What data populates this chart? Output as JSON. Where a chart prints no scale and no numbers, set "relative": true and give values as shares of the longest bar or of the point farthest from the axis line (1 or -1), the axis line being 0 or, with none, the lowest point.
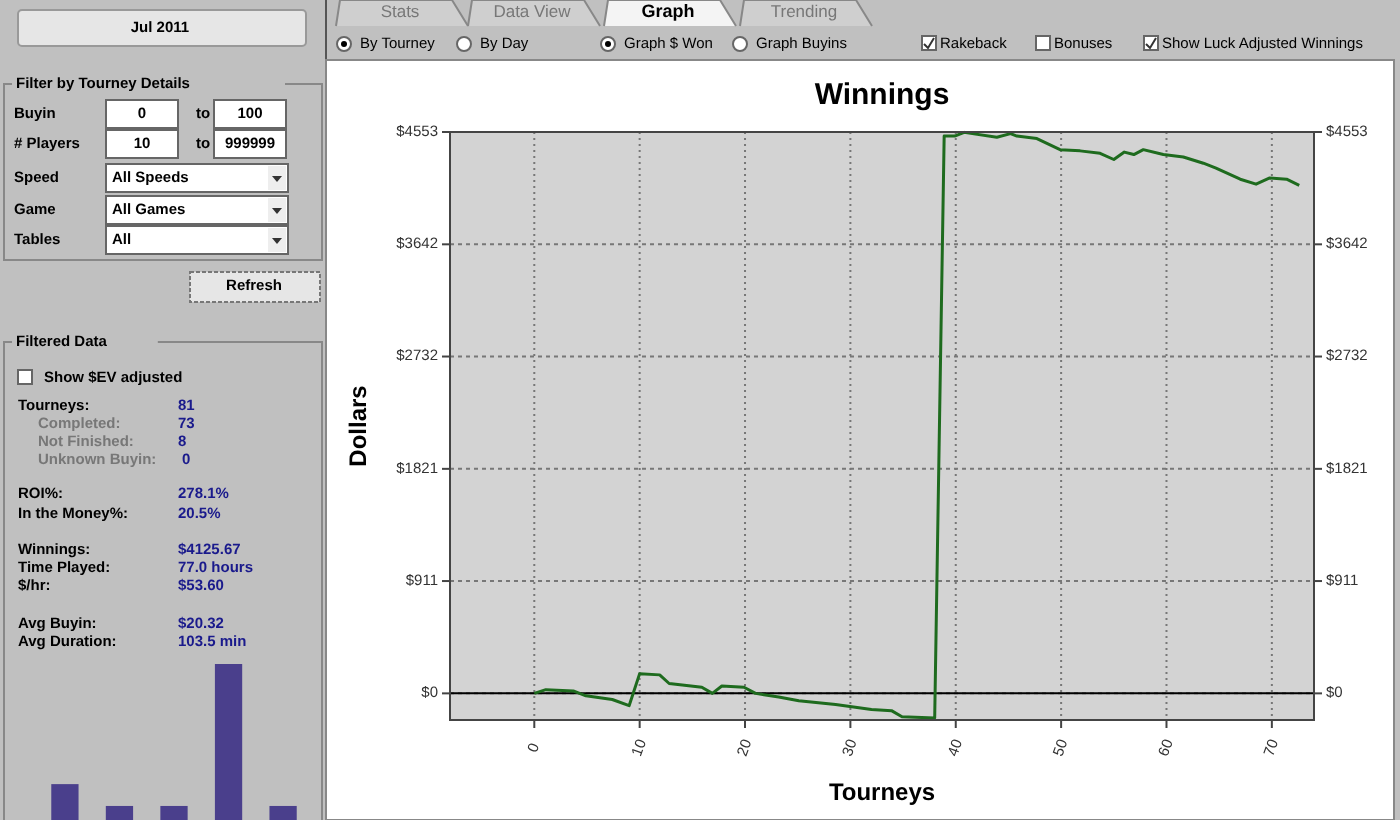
{
  "chart_data": [
    {
      "type": "other",
      "annotations": [
        "Jul 2011",
        "Filter by Tourney Details",
        "Buyin",
        "0",
        "to",
        "100",
        "# Players",
        "10",
        "to",
        "999999",
        "Speed",
        "All Speeds",
        "Game",
        "All Games",
        "Tables",
        "All",
        "Refresh",
        "Filtered Data",
        "Show $EV adjusted",
        "Tourneys:",
        "81",
        "Completed:",
        "73",
        "Not Finished:",
        "8",
        "Unknown Buyin:",
        "0",
        "ROI%:",
        "278.1%",
        "In the Money%:",
        "20.5%",
        "Winnings:",
        "$4125.67",
        "Time Played:",
        "77.0 hours",
        "$/hr:",
        "$53.60",
        "Avg Buyin:",
        "$20.32",
        "Avg Duration:",
        "103.5 min",
        "Stats",
        "Data View",
        "Graph",
        "Trending",
        "By Tourney",
        "By Day",
        "Graph $ Won",
        "Graph Buyins",
        "Rakeback",
        "Bonuses",
        "Show Luck Adjusted Winnings"
      ]
    },
    {
      "type": "line",
      "title": "Winnings",
      "xlabel": "Tourneys",
      "ylabel": "Dollars",
      "color": "#1e6b1e",
      "grid": true,
      "x": [
        0,
        1.1,
        3.7,
        4.9,
        7.4,
        9,
        10,
        11.9,
        12.8,
        15.9,
        16.9,
        17.8,
        19.9,
        21,
        23.2,
        25.1,
        28.6,
        32,
        33.9,
        34.9,
        38,
        38.9,
        39.9,
        40.8,
        43.9,
        45.2,
        45.8,
        47.7,
        49.9,
        51.8,
        53.7,
        55,
        56,
        56.9,
        57.8,
        59.7,
        61.6,
        63.5,
        64.7,
        67,
        68.5,
        69.8,
        71.4,
        72.6
      ],
      "values": [
        0,
        30,
        20,
        -20,
        -50,
        -100,
        160,
        150,
        80,
        50,
        0,
        60,
        50,
        0,
        -30,
        -60,
        -90,
        -130,
        -140,
        -190,
        -200,
        4520,
        4520,
        4550,
        4510,
        4540,
        4520,
        4500,
        4410,
        4400,
        4380,
        4330,
        4390,
        4370,
        4410,
        4370,
        4350,
        4300,
        4260,
        4170,
        4130,
        4180,
        4170,
        4120
      ],
      "xlim": [
        -8,
        74
      ],
      "xticks": [
        0,
        10,
        20,
        30,
        40,
        50,
        60,
        70
      ],
      "ylim": [
        -216,
        4553
      ],
      "yticks": [
        {
          "value": 0,
          "label": "$0"
        },
        {
          "value": 911,
          "label": "$911"
        },
        {
          "value": 1821,
          "label": "$1821"
        },
        {
          "value": 2732,
          "label": "$2732"
        },
        {
          "value": 3642,
          "label": "$3642"
        },
        {
          "value": 4553,
          "label": "$4553"
        }
      ],
      "y2lim": [
        -216,
        4553
      ],
      "y2ticks": [
        {
          "value": 0,
          "label": "$0"
        },
        {
          "value": 911,
          "label": "$911"
        },
        {
          "value": 1821,
          "label": "$1821"
        },
        {
          "value": 2732,
          "label": "$2732"
        },
        {
          "value": 3642,
          "label": "$3642"
        },
        {
          "value": 4553,
          "label": "$4553"
        }
      ],
      "ref_lines": [
        {
          "axis": "y",
          "value": 0,
          "color": "#000000"
        }
      ]
    },
    {
      "type": "bar",
      "relative": true,
      "color": "#4a3f8c",
      "categories": [
        null,
        null,
        null,
        null,
        null
      ],
      "values": [
        0.23,
        0.09,
        0.09,
        1,
        0.09
      ]
    }
  ]
}
